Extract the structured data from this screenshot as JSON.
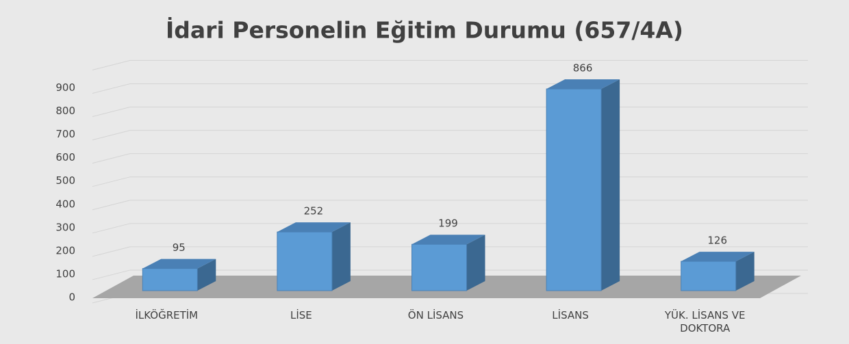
{
  "chart_data": {
    "type": "bar3d",
    "title": "İdari Personelin Eğitim Durumu (657/4A)",
    "categories": [
      "İLKÖĞRETİM",
      "LİSE",
      "ÖN LİSANS",
      "LİSANS",
      "YÜK. LİSANS VE DOKTORA"
    ],
    "values": [
      95,
      252,
      199,
      866,
      126
    ],
    "color": "#5b9bd5",
    "ylim": [
      0,
      1000
    ],
    "yticks": [
      0,
      100,
      200,
      300,
      400,
      500,
      600,
      700,
      800,
      900
    ],
    "grid": true
  }
}
